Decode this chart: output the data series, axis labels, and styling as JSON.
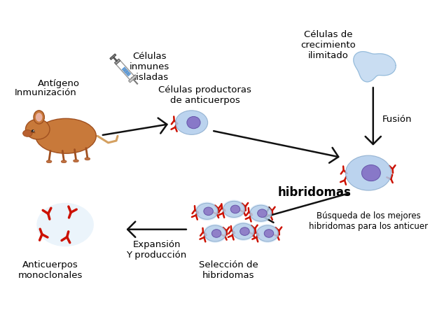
{
  "bg_color": "#ffffff",
  "arrow_color": "#111111",
  "cell_body_color": "#b0ccec",
  "cell_nucleus_color": "#8878c8",
  "antibody_color": "#cc1100",
  "receptor_color": "#cc1100",
  "unlimited_cell_color": "#c0d8f0",
  "mouse_body_color": "#c8793a",
  "labels": {
    "antigen": "Antígeno",
    "immunization": "Inmunización",
    "immune_cells": "Células\ninmunes\naisladas",
    "producer_cells": "Células productoras\nde anticuerpos",
    "unlimited_cells": "Células de\ncrecimiento\nilimitado",
    "fusion": "Fusión",
    "hybridomas_label": "hibridomas",
    "selection": "Selección de\nhibridomas",
    "search": "Búsqueda de los mejores\nhibridomas para los anticuer",
    "expansion": "Expansión\nY producción",
    "monoclonal": "Anticuerpos\nmonoclonales"
  }
}
